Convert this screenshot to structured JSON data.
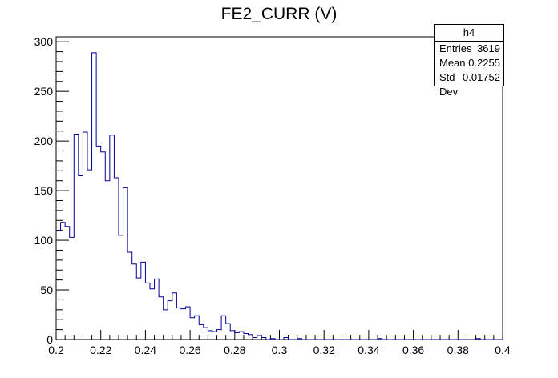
{
  "chart_data": {
    "type": "histogram",
    "title": "FE2_CURR (V)",
    "xlim": [
      0.2,
      0.4
    ],
    "ylim": [
      0,
      305
    ],
    "bin_width": 0.002,
    "x_ticks": [
      0.2,
      0.22,
      0.24,
      0.26,
      0.28,
      0.3,
      0.32,
      0.34,
      0.36,
      0.38,
      0.4
    ],
    "x_tick_labels": [
      "0.2",
      "0.22",
      "0.24",
      "0.26",
      "0.28",
      "0.3",
      "0.32",
      "0.34",
      "0.36",
      "0.38",
      "0.4"
    ],
    "y_ticks": [
      0,
      50,
      100,
      150,
      200,
      250,
      300
    ],
    "y_tick_labels": [
      "0",
      "50",
      "100",
      "150",
      "200",
      "250",
      "300"
    ],
    "bin_start": 0.2,
    "values": [
      110,
      118,
      114,
      103,
      207,
      165,
      209,
      171,
      289,
      195,
      189,
      160,
      206,
      163,
      105,
      153,
      88,
      76,
      62,
      78,
      57,
      51,
      61,
      43,
      30,
      39,
      47,
      32,
      31,
      33,
      22,
      24,
      15,
      12,
      9,
      8,
      10,
      24,
      16,
      9,
      7,
      8,
      6,
      5,
      2,
      4,
      2,
      0,
      1,
      0,
      0,
      2,
      0,
      0,
      1,
      0,
      0,
      0,
      0,
      0,
      0,
      0,
      0,
      0,
      0,
      0,
      0,
      0,
      0,
      0,
      0,
      0,
      1,
      0,
      0,
      0,
      0,
      0,
      0,
      0,
      0,
      0,
      0,
      0,
      0,
      0,
      0,
      0,
      0,
      0,
      0,
      0,
      0,
      0,
      1,
      0,
      0,
      0,
      0,
      0
    ],
    "line_color": "#000099",
    "stats": {
      "name": "h4",
      "entries_label": "Entries",
      "entries": "3619",
      "mean_label": "Mean",
      "mean": "0.2255",
      "std_label": "Std Dev",
      "std": "0.01752"
    }
  }
}
